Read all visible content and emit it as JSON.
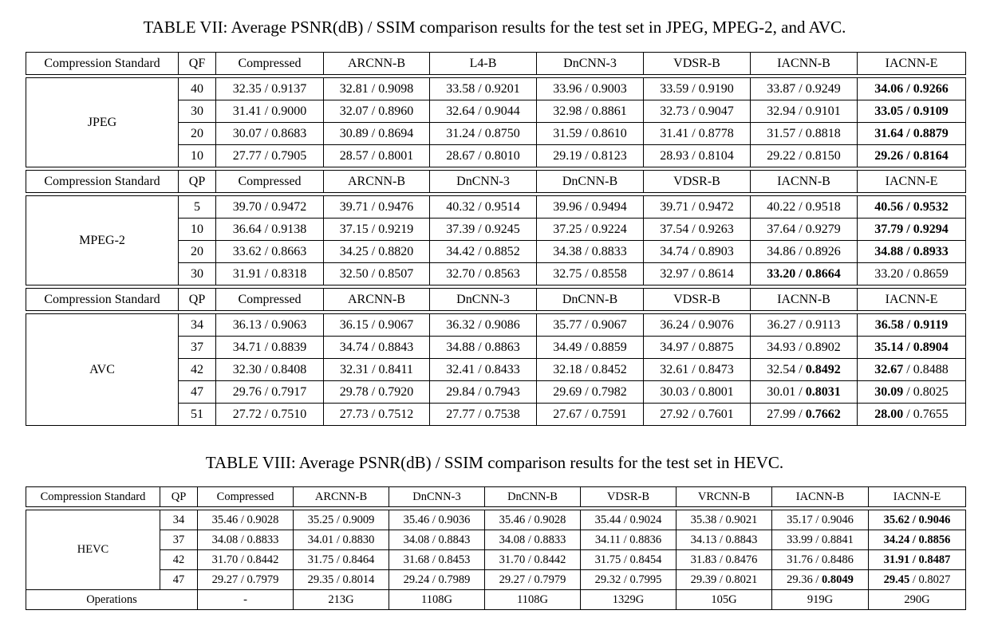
{
  "table7": {
    "caption": "TABLE VII: Average PSNR(dB) / SSIM comparison results for the test set in JPEG, MPEG-2, and AVC.",
    "blocks": [
      {
        "header": [
          "Compression Standard",
          "QF",
          "Compressed",
          "ARCNN-B",
          "L4-B",
          "DnCNN-3",
          "VDSR-B",
          "IACNN-B",
          "IACNN-E"
        ],
        "standard": "JPEG",
        "rows": [
          {
            "q": "40",
            "vals": [
              [
                "32.35 / 0.9137"
              ],
              [
                "32.81 / 0.9098"
              ],
              [
                "33.58 / 0.9201"
              ],
              [
                "33.96 / 0.9003"
              ],
              [
                "33.59 / 0.9190"
              ],
              [
                "33.87 / 0.9249"
              ],
              [
                "34.06 / 0.9266",
                "b"
              ]
            ]
          },
          {
            "q": "30",
            "vals": [
              [
                "31.41 / 0.9000"
              ],
              [
                "32.07 / 0.8960"
              ],
              [
                "32.64 / 0.9044"
              ],
              [
                "32.98 / 0.8861"
              ],
              [
                "32.73 / 0.9047"
              ],
              [
                "32.94 / 0.9101"
              ],
              [
                "33.05 / 0.9109",
                "b"
              ]
            ]
          },
          {
            "q": "20",
            "vals": [
              [
                "30.07 / 0.8683"
              ],
              [
                "30.89 / 0.8694"
              ],
              [
                "31.24 / 0.8750"
              ],
              [
                "31.59 / 0.8610"
              ],
              [
                "31.41 / 0.8778"
              ],
              [
                "31.57 / 0.8818"
              ],
              [
                "31.64 / 0.8879",
                "b"
              ]
            ]
          },
          {
            "q": "10",
            "vals": [
              [
                "27.77 / 0.7905"
              ],
              [
                "28.57 / 0.8001"
              ],
              [
                "28.67 / 0.8010"
              ],
              [
                "29.19 / 0.8123"
              ],
              [
                "28.93 / 0.8104"
              ],
              [
                "29.22 / 0.8150"
              ],
              [
                "29.26 / 0.8164",
                "b"
              ]
            ]
          }
        ]
      },
      {
        "header": [
          "Compression Standard",
          "QP",
          "Compressed",
          "ARCNN-B",
          "DnCNN-3",
          "DnCNN-B",
          "VDSR-B",
          "IACNN-B",
          "IACNN-E"
        ],
        "standard": "MPEG-2",
        "rows": [
          {
            "q": "5",
            "vals": [
              [
                "39.70 / 0.9472"
              ],
              [
                "39.71 / 0.9476"
              ],
              [
                "40.32 / 0.9514"
              ],
              [
                "39.96 / 0.9494"
              ],
              [
                "39.71 / 0.9472"
              ],
              [
                "40.22 / 0.9518"
              ],
              [
                "40.56 / 0.9532",
                "b"
              ]
            ]
          },
          {
            "q": "10",
            "vals": [
              [
                "36.64 / 0.9138"
              ],
              [
                "37.15 / 0.9219"
              ],
              [
                "37.39 / 0.9245"
              ],
              [
                "37.25 / 0.9224"
              ],
              [
                "37.54 / 0.9263"
              ],
              [
                "37.64 / 0.9279"
              ],
              [
                "37.79 / 0.9294",
                "b"
              ]
            ]
          },
          {
            "q": "20",
            "vals": [
              [
                "33.62 / 0.8663"
              ],
              [
                "34.25 / 0.8820"
              ],
              [
                "34.42 / 0.8852"
              ],
              [
                "34.38 / 0.8833"
              ],
              [
                "34.74 / 0.8903"
              ],
              [
                "34.86 / 0.8926"
              ],
              [
                "34.88 / 0.8933",
                "b"
              ]
            ]
          },
          {
            "q": "30",
            "vals": [
              [
                "31.91 / 0.8318"
              ],
              [
                "32.50 / 0.8507"
              ],
              [
                "32.70 / 0.8563"
              ],
              [
                "32.75 / 0.8558"
              ],
              [
                "32.97 / 0.8614"
              ],
              [
                "33.20 / 0.8664",
                "b"
              ],
              [
                "33.20 / 0.8659"
              ]
            ]
          }
        ]
      },
      {
        "header": [
          "Compression Standard",
          "QP",
          "Compressed",
          "ARCNN-B",
          "DnCNN-3",
          "DnCNN-B",
          "VDSR-B",
          "IACNN-B",
          "IACNN-E"
        ],
        "standard": "AVC",
        "rows": [
          {
            "q": "34",
            "vals": [
              [
                "36.13 / 0.9063"
              ],
              [
                "36.15 / 0.9067"
              ],
              [
                "36.32 / 0.9086"
              ],
              [
                "35.77 / 0.9067"
              ],
              [
                "36.24 / 0.9076"
              ],
              [
                "36.27 / 0.9113"
              ],
              [
                "36.58 / 0.9119",
                "b"
              ]
            ]
          },
          {
            "q": "37",
            "vals": [
              [
                "34.71 / 0.8839"
              ],
              [
                "34.74 / 0.8843"
              ],
              [
                "34.88 / 0.8863"
              ],
              [
                "34.49 / 0.8859"
              ],
              [
                "34.97 / 0.8875"
              ],
              [
                "34.93 / 0.8902"
              ],
              [
                "35.14 / 0.8904",
                "b"
              ]
            ]
          },
          {
            "q": "42",
            "vals": [
              [
                "32.30 / 0.8408"
              ],
              [
                "32.31 / 0.8411"
              ],
              [
                "32.41 / 0.8433"
              ],
              [
                "32.18 / 0.8452"
              ],
              [
                "32.61 / 0.8473"
              ],
              [
                "32.54 / 0.8492",
                "s"
              ],
              [
                "32.67 / 0.8488",
                "p"
              ]
            ]
          },
          {
            "q": "47",
            "vals": [
              [
                "29.76 / 0.7917"
              ],
              [
                "29.78 / 0.7920"
              ],
              [
                "29.84 / 0.7943"
              ],
              [
                "29.69 / 0.7982"
              ],
              [
                "30.03 / 0.8001"
              ],
              [
                "30.01 / 0.8031",
                "s"
              ],
              [
                "30.09 / 0.8025",
                "p"
              ]
            ]
          },
          {
            "q": "51",
            "vals": [
              [
                "27.72 / 0.7510"
              ],
              [
                "27.73 / 0.7512"
              ],
              [
                "27.77 / 0.7538"
              ],
              [
                "27.67 / 0.7591"
              ],
              [
                "27.92 / 0.7601"
              ],
              [
                "27.99 / 0.7662",
                "s"
              ],
              [
                "28.00 / 0.7655",
                "p"
              ]
            ]
          }
        ]
      }
    ]
  },
  "table8": {
    "caption": "TABLE VIII: Average PSNR(dB) / SSIM comparison results for the test set in HEVC.",
    "header": [
      "Compression Standard",
      "QP",
      "Compressed",
      "ARCNN-B",
      "DnCNN-3",
      "DnCNN-B",
      "VDSR-B",
      "VRCNN-B",
      "IACNN-B",
      "IACNN-E"
    ],
    "standard": "HEVC",
    "rows": [
      {
        "q": "34",
        "vals": [
          [
            "35.46 / 0.9028"
          ],
          [
            "35.25 / 0.9009"
          ],
          [
            "35.46 / 0.9036"
          ],
          [
            "35.46 / 0.9028"
          ],
          [
            "35.44 / 0.9024"
          ],
          [
            "35.38 / 0.9021"
          ],
          [
            "35.17 / 0.9046"
          ],
          [
            "35.62 / 0.9046",
            "b"
          ]
        ]
      },
      {
        "q": "37",
        "vals": [
          [
            "34.08 / 0.8833"
          ],
          [
            "34.01 / 0.8830"
          ],
          [
            "34.08 / 0.8843"
          ],
          [
            "34.08 / 0.8833"
          ],
          [
            "34.11 / 0.8836"
          ],
          [
            "34.13 / 0.8843"
          ],
          [
            "33.99 / 0.8841"
          ],
          [
            "34.24 / 0.8856",
            "b"
          ]
        ]
      },
      {
        "q": "42",
        "vals": [
          [
            "31.70 / 0.8442"
          ],
          [
            "31.75 / 0.8464"
          ],
          [
            "31.68 / 0.8453"
          ],
          [
            "31.70 / 0.8442"
          ],
          [
            "31.75 / 0.8454"
          ],
          [
            "31.83 / 0.8476"
          ],
          [
            "31.76 / 0.8486"
          ],
          [
            "31.91 / 0.8487",
            "b"
          ]
        ]
      },
      {
        "q": "47",
        "vals": [
          [
            "29.27 / 0.7979"
          ],
          [
            "29.35 / 0.8014"
          ],
          [
            "29.24 / 0.7989"
          ],
          [
            "29.27 / 0.7979"
          ],
          [
            "29.32 / 0.7995"
          ],
          [
            "29.39 / 0.8021"
          ],
          [
            "29.36 / 0.8049",
            "s"
          ],
          [
            "29.45 / 0.8027",
            "p"
          ]
        ]
      }
    ],
    "operations": {
      "label": "Operations",
      "values": [
        "-",
        "213G",
        "1108G",
        "1108G",
        "1329G",
        "105G",
        "919G",
        "290G"
      ]
    }
  }
}
